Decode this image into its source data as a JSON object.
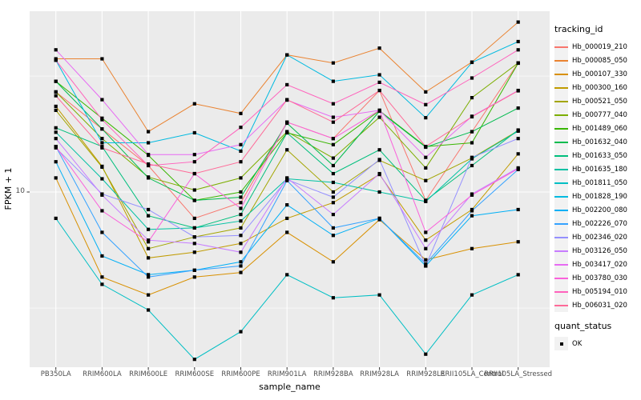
{
  "figure": {
    "background": "#FFFFFF",
    "panel_background": "#EBEBEB",
    "gridline_color": "#FFFFFF",
    "axis_text_color": "#4D4D4D",
    "tick_mark_color": "#333333"
  },
  "chart_data": {
    "type": "line",
    "title": "",
    "xlabel": "sample_name",
    "ylabel": "FPKM + 1",
    "y_scale": "log10",
    "y_tick_label": "10",
    "y_major_gridline_value": 10,
    "y_minor_gridline_values": [
      31.6,
      3.16
    ],
    "ylim": [
      1.75,
      60
    ],
    "grid": true,
    "legend_position": "right",
    "point_marker": {
      "shape": "square",
      "color": "#000000"
    },
    "categories": [
      "PB350LA",
      "RRIM600LA",
      "RRIM600LE",
      "RRIM600SE",
      "RRIM600PE",
      "RRIM901LA",
      "RRIM928BA",
      "RRIM928LA",
      "RRIM928LE",
      "RRII105LA_Control",
      "RRII105LA_Stressed"
    ],
    "series": [
      {
        "name": "Hb_000019_210",
        "color": "#F8766D",
        "values": [
          27,
          18.7,
          13,
          7.7,
          9,
          20,
          17,
          27.4,
          9.2,
          18.2,
          36
        ]
      },
      {
        "name": "Hb_000085_050",
        "color": "#EA8331",
        "values": [
          37.5,
          37.5,
          18.2,
          24,
          21.8,
          39,
          36,
          41.7,
          27,
          36.3,
          54
        ]
      },
      {
        "name": "Hb_000107_330",
        "color": "#D89000",
        "values": [
          11.5,
          4.3,
          3.6,
          4.3,
          4.5,
          6.7,
          5,
          7.6,
          5.1,
          5.7,
          6.1
        ]
      },
      {
        "name": "Hb_000300_160",
        "color": "#C09B00",
        "values": [
          23.4,
          12.9,
          5.2,
          5.5,
          6,
          7.7,
          9,
          11.9,
          6.2,
          8.4,
          14.6
        ]
      },
      {
        "name": "Hb_000521_050",
        "color": "#A3A500",
        "values": [
          22.5,
          12.8,
          5.7,
          6.4,
          7,
          15.2,
          10,
          13.7,
          11.2,
          14.0,
          18.4
        ]
      },
      {
        "name": "Hb_000777_040",
        "color": "#7CAE00",
        "values": [
          27,
          17,
          11.6,
          10.2,
          11.5,
          18.2,
          14,
          21,
          12.7,
          25.5,
          36
        ]
      },
      {
        "name": "Hb_001489_060",
        "color": "#39B600",
        "values": [
          30,
          20.8,
          14.4,
          9.2,
          10,
          18,
          16,
          22.4,
          15.7,
          16.3,
          35.9
        ]
      },
      {
        "name": "Hb_001632_040",
        "color": "#00BB4E",
        "values": [
          30,
          18.7,
          11.5,
          9.2,
          9.5,
          19.8,
          13,
          22.3,
          15.6,
          18.2,
          23
        ]
      },
      {
        "name": "Hb_001633_050",
        "color": "#00BF7D",
        "values": [
          18.9,
          15.7,
          7.9,
          7.0,
          8,
          18,
          12,
          15.2,
          9.2,
          13,
          18.5
        ]
      },
      {
        "name": "Hb_001635_180",
        "color": "#00C1A3",
        "values": [
          18.1,
          11.4,
          6.9,
          7.0,
          7.5,
          11.4,
          11,
          10,
          9.1,
          13.9,
          18.3
        ]
      },
      {
        "name": "Hb_001811_050",
        "color": "#00BFC4",
        "values": [
          7.7,
          4.0,
          3.1,
          1.9,
          2.5,
          4.4,
          3.5,
          3.6,
          2.0,
          3.6,
          4.4
        ]
      },
      {
        "name": "Hb_001828_190",
        "color": "#00BAE0",
        "values": [
          37,
          16.3,
          16.3,
          18,
          15,
          39,
          30,
          32,
          20.9,
          36.2,
          44.5
        ]
      },
      {
        "name": "Hb_002200_080",
        "color": "#00B0F6",
        "values": [
          13.5,
          5.3,
          4.4,
          4.6,
          5,
          8.8,
          6.5,
          7.7,
          4.8,
          7.9,
          8.4
        ]
      },
      {
        "name": "Hb_002226_070",
        "color": "#35A2FF",
        "values": [
          15.7,
          6.7,
          4.3,
          4.6,
          4.8,
          11.2,
          7,
          7.7,
          4.9,
          8.3,
          12.5
        ]
      },
      {
        "name": "Hb_002346_020",
        "color": "#9590FF",
        "values": [
          15.5,
          9.8,
          8.4,
          6.4,
          6.5,
          11.3,
          9.5,
          13.8,
          4.8,
          14.1,
          17
        ]
      },
      {
        "name": "Hb_003126_050",
        "color": "#C77CFF",
        "values": [
          17,
          9.7,
          6.2,
          6.0,
          5.5,
          11.5,
          8,
          12,
          5.7,
          9.8,
          12.7
        ]
      },
      {
        "name": "Hb_003417_020",
        "color": "#E76BF3",
        "values": [
          41,
          25,
          14.5,
          14.5,
          16,
          24.9,
          21,
          22.5,
          14.1,
          21.2,
          27.4
        ]
      },
      {
        "name": "Hb_003780_030",
        "color": "#FA62DB",
        "values": [
          15.7,
          8.3,
          6.1,
          12,
          8.5,
          20,
          17,
          22.5,
          6.7,
          9.7,
          12.6
        ]
      },
      {
        "name": "Hb_005194_010",
        "color": "#FF62BC",
        "values": [
          37,
          20.5,
          13,
          13.5,
          19,
          29,
          24,
          29.7,
          23.8,
          31,
          41
        ]
      },
      {
        "name": "Hb_006031_020",
        "color": "#FF6A98",
        "values": [
          26,
          15.5,
          13.2,
          12,
          13.5,
          25,
          20,
          27.4,
          15.7,
          21.1,
          27.3
        ]
      }
    ],
    "legend": {
      "tracking_title": "tracking_id",
      "quant_title": "quant_status",
      "quant_items": [
        {
          "label": "OK",
          "marker": "black-square"
        }
      ]
    }
  }
}
